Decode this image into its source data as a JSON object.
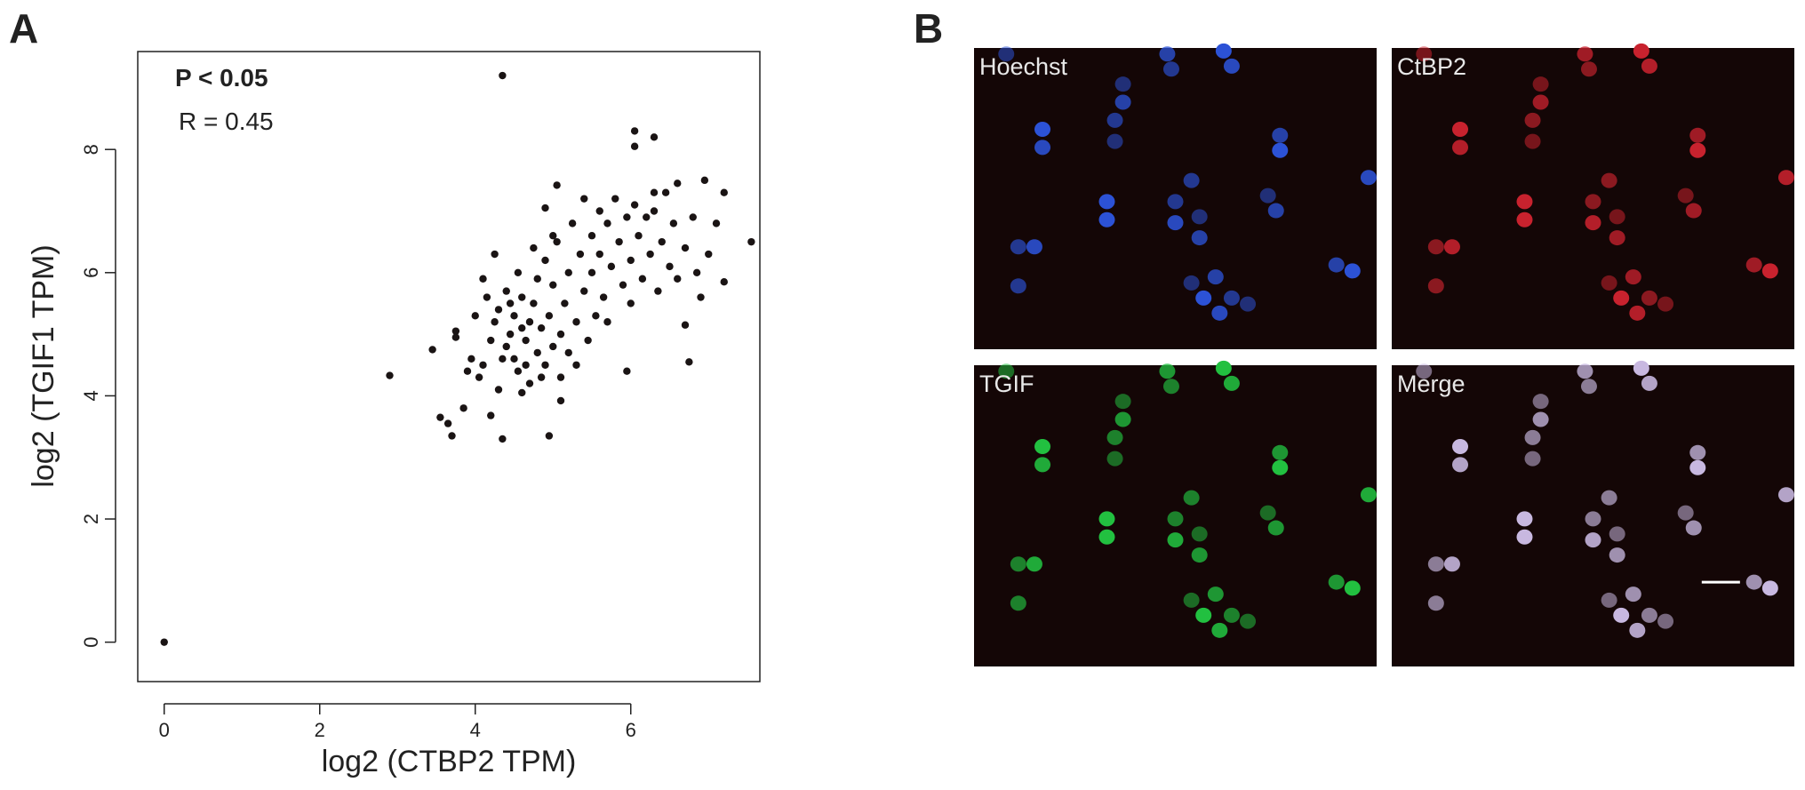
{
  "chart_data": {
    "type": "scatter",
    "panel_label": "A",
    "annotations": [
      "P < 0.05",
      "R = 0.45"
    ],
    "x_label": "log2 (CTBP2 TPM)",
    "y_label": "log2 (TGIF1 TPM)",
    "color": "#1a1414",
    "x": [
      0,
      4.35,
      2.9,
      3.45,
      3.55,
      3.7,
      3.65,
      3.85,
      4.2,
      4.35,
      4.95,
      5.1,
      5.95,
      6.75,
      6.7,
      7.55,
      7.2,
      7.1,
      7.2,
      6.95,
      6.6,
      6.3,
      6.05,
      6.3,
      6.05,
      5.05,
      4.9,
      4.25,
      4.15,
      3.75,
      3.75,
      3.95,
      4.05,
      4.1,
      4.2,
      4.25,
      4.3,
      4.4,
      4.45,
      4.5,
      4.5,
      4.55,
      4.6,
      4.6,
      4.65,
      4.7,
      4.7,
      4.75,
      4.8,
      4.8,
      4.85,
      4.9,
      4.9,
      4.95,
      5.0,
      5.0,
      5.05,
      5.1,
      5.1,
      5.15,
      5.2,
      5.2,
      5.25,
      5.3,
      5.35,
      5.4,
      5.45,
      5.5,
      5.5,
      5.55,
      5.6,
      5.6,
      5.65,
      5.7,
      5.75,
      5.8,
      5.85,
      5.9,
      5.95,
      6.0,
      6.05,
      6.1,
      6.15,
      6.2,
      6.25,
      6.3,
      6.35,
      6.4,
      6.5,
      6.55,
      6.6,
      6.7,
      6.8,
      6.85,
      6.9,
      7.0,
      4.3,
      4.4,
      4.6,
      4.1,
      4.0,
      3.9,
      4.55,
      4.75,
      5.3,
      5.7,
      6.0,
      6.45,
      4.65,
      4.85,
      4.35,
      4.45,
      5.0,
      5.4
    ],
    "values": [
      0,
      9.2,
      4.33,
      4.75,
      3.65,
      3.35,
      3.55,
      3.8,
      3.68,
      3.3,
      3.35,
      3.92,
      4.4,
      4.55,
      5.15,
      6.5,
      5.85,
      6.8,
      7.3,
      7.5,
      7.45,
      7.3,
      8.3,
      8.2,
      8.05,
      7.42,
      7.05,
      6.3,
      5.6,
      4.95,
      5.05,
      4.6,
      4.3,
      4.5,
      4.9,
      5.2,
      5.4,
      4.8,
      5.0,
      5.3,
      4.6,
      4.4,
      5.1,
      5.6,
      4.9,
      5.2,
      4.2,
      5.5,
      4.7,
      5.9,
      5.1,
      4.5,
      6.2,
      5.3,
      4.8,
      5.8,
      6.5,
      5.0,
      4.3,
      5.5,
      6.0,
      4.7,
      6.8,
      5.2,
      6.3,
      5.7,
      4.9,
      6.6,
      6.0,
      5.3,
      7.0,
      6.3,
      5.6,
      6.8,
      6.1,
      7.2,
      6.5,
      5.8,
      6.9,
      6.2,
      7.1,
      6.6,
      5.9,
      6.9,
      6.3,
      7.0,
      5.7,
      6.5,
      6.1,
      6.8,
      5.9,
      6.4,
      6.9,
      6.0,
      5.6,
      6.3,
      4.1,
      5.7,
      4.05,
      5.9,
      5.3,
      4.4,
      6.0,
      6.4,
      4.5,
      5.2,
      5.5,
      7.3,
      4.5,
      4.3,
      4.6,
      5.5,
      6.6,
      7.2
    ],
    "xlim": [
      -0.34,
      7.66
    ],
    "ylim": [
      -0.64,
      9.59
    ],
    "xticks": [
      0,
      2,
      4,
      6
    ],
    "yticks": [
      0,
      2,
      4,
      6,
      8
    ]
  },
  "panel_b": {
    "label": "B",
    "images": [
      "Hoechst",
      "CtBP2",
      "TGIF",
      "Merge"
    ]
  }
}
